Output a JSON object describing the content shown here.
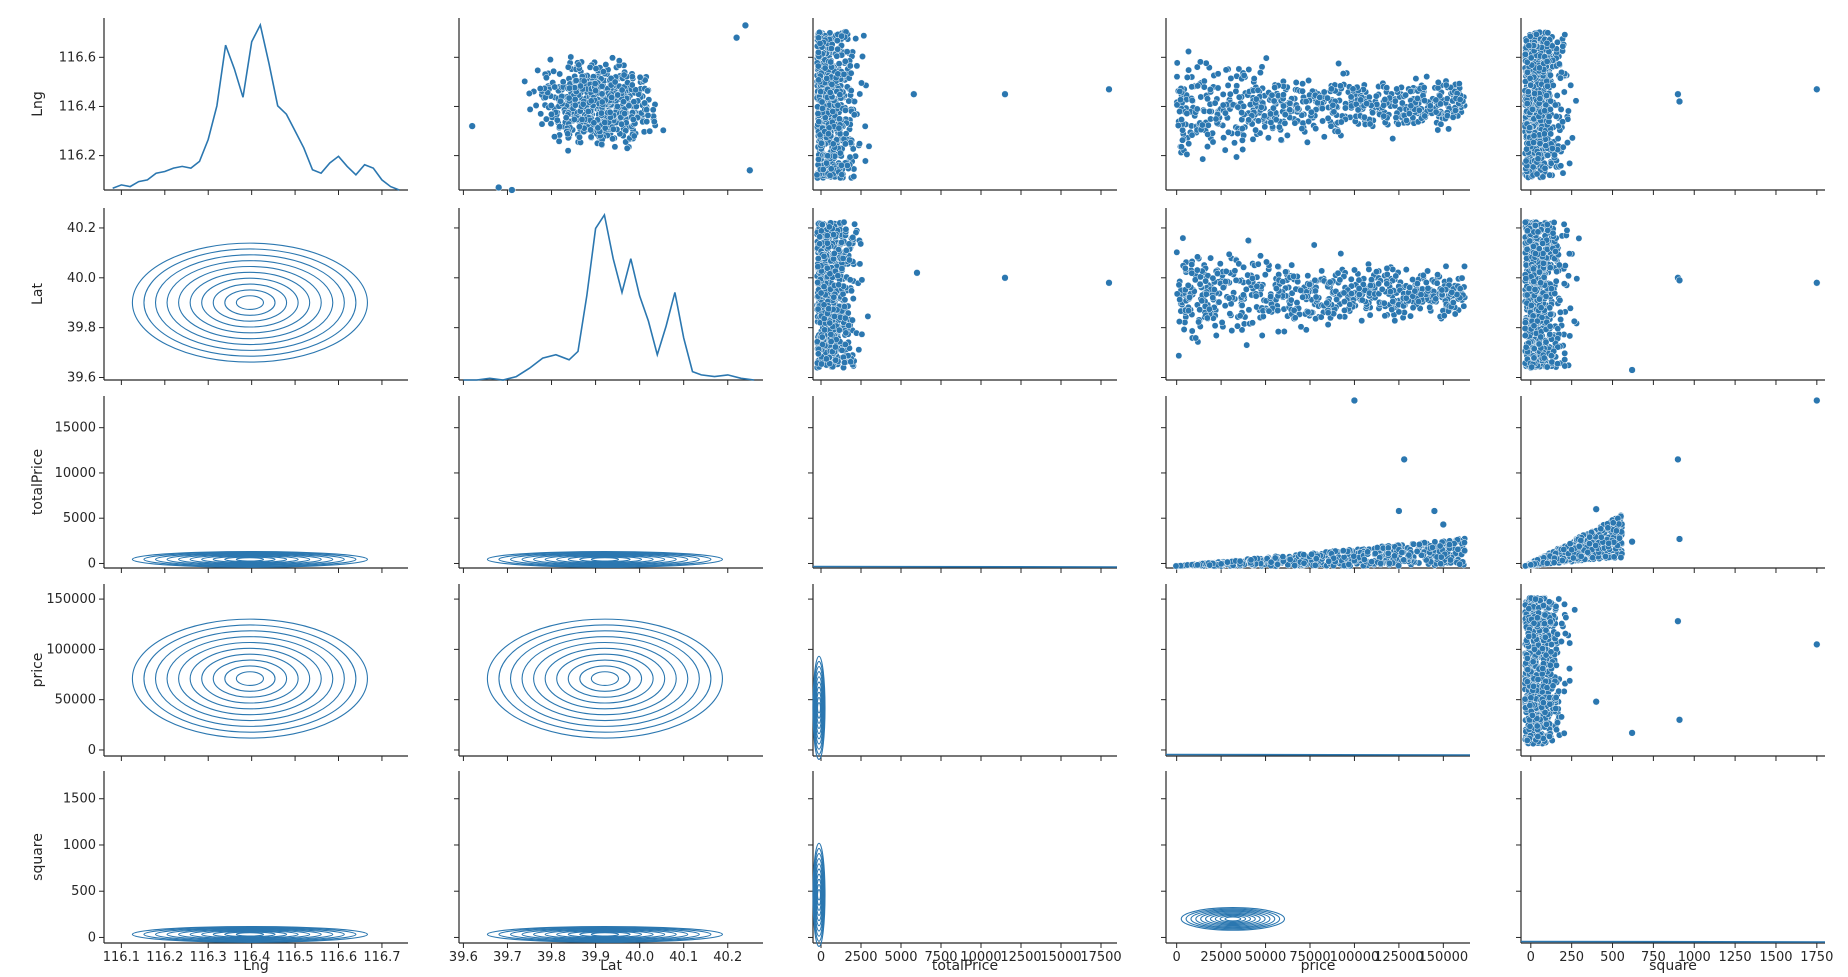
{
  "colors": {
    "series": "#2b77b0",
    "marker_edge": "#ffffff",
    "axis": "#262626"
  },
  "chart_data": {
    "type": "scatter",
    "subtype": "pairplot",
    "variables": [
      "Lng",
      "Lat",
      "totalPrice",
      "price",
      "square"
    ],
    "diagonal": "kde",
    "lower": "kde-contour",
    "upper": "scatter",
    "axes": {
      "Lng": {
        "label": "Lng",
        "lim": [
          116.06,
          116.76
        ],
        "ticks": [
          116.1,
          116.2,
          116.3,
          116.4,
          116.5,
          116.6,
          116.7
        ],
        "ytick_labels": [
          "116.2",
          "116.4",
          "116.6"
        ],
        "ytick_values": [
          116.2,
          116.4,
          116.6
        ],
        "xtick_labels": [
          "116.1",
          "116.2",
          "116.3",
          "116.4",
          "116.5",
          "116.6",
          "116.7"
        ]
      },
      "Lat": {
        "label": "Lat",
        "lim": [
          39.59,
          40.28
        ],
        "xtick_values": [
          39.6,
          39.7,
          39.8,
          39.9,
          40.0,
          40.1,
          40.2
        ],
        "xtick_labels": [
          "39.6",
          "39.7",
          "39.8",
          "39.9",
          "40.0",
          "40.1",
          "40.2"
        ],
        "ytick_values": [
          39.6,
          39.8,
          40.0,
          40.2
        ],
        "ytick_labels": [
          "39.6",
          "39.8",
          "40.0",
          "40.2"
        ]
      },
      "totalPrice": {
        "label": "totalPrice",
        "lim": [
          -500,
          18500
        ],
        "xtick_values": [
          0,
          2500,
          5000,
          7500,
          10000,
          12500,
          15000,
          17500
        ],
        "xtick_labels": [
          "0",
          "2500",
          "5000",
          "7500",
          "10000",
          "12500",
          "15000",
          "17500"
        ],
        "ytick_values": [
          0,
          5000,
          10000,
          15000
        ],
        "ytick_labels": [
          "0",
          "5000",
          "10000",
          "15000"
        ]
      },
      "price": {
        "label": "price",
        "lim": [
          -6000,
          165000
        ],
        "xtick_values": [
          0,
          25000,
          50000,
          75000,
          100000,
          125000,
          150000
        ],
        "xtick_labels": [
          "0",
          "25000",
          "50000",
          "75000",
          "100000",
          "125000",
          "150000"
        ],
        "ytick_values": [
          0,
          50000,
          100000,
          150000
        ],
        "ytick_labels": [
          "0",
          "50000",
          "100000",
          "150000"
        ]
      },
      "square": {
        "label": "square",
        "lim": [
          -60,
          1800
        ],
        "xtick_values": [
          0,
          250,
          500,
          750,
          1000,
          1250,
          1500,
          1750
        ],
        "xtick_labels": [
          "0",
          "250",
          "500",
          "750",
          "1000",
          "1250",
          "1500",
          "1750"
        ],
        "ytick_values": [
          0,
          500,
          1000,
          1500
        ],
        "ytick_labels": [
          "0",
          "500",
          "1000",
          "1500"
        ]
      }
    },
    "diagonal_kde": {
      "Lng": {
        "x": [
          116.08,
          116.1,
          116.12,
          116.14,
          116.16,
          116.18,
          116.2,
          116.22,
          116.24,
          116.26,
          116.28,
          116.3,
          116.32,
          116.34,
          116.36,
          116.38,
          116.4,
          116.42,
          116.44,
          116.46,
          116.48,
          116.5,
          116.52,
          116.54,
          116.56,
          116.58,
          116.6,
          116.62,
          116.64,
          116.66,
          116.68,
          116.7,
          116.72,
          116.74
        ],
        "y": [
          0.01,
          0.03,
          0.02,
          0.05,
          0.06,
          0.1,
          0.11,
          0.13,
          0.14,
          0.13,
          0.17,
          0.3,
          0.5,
          0.86,
          0.72,
          0.55,
          0.88,
          0.98,
          0.75,
          0.5,
          0.45,
          0.35,
          0.25,
          0.12,
          0.1,
          0.16,
          0.2,
          0.14,
          0.09,
          0.15,
          0.13,
          0.06,
          0.02,
          0.0
        ]
      },
      "Lat": {
        "x": [
          39.6,
          39.63,
          39.66,
          39.69,
          39.72,
          39.75,
          39.78,
          39.81,
          39.84,
          39.86,
          39.88,
          39.9,
          39.92,
          39.94,
          39.96,
          39.98,
          40.0,
          40.02,
          40.04,
          40.06,
          40.08,
          40.1,
          40.12,
          40.14,
          40.17,
          40.2,
          40.23,
          40.26
        ],
        "y": [
          0.0,
          0.0,
          0.01,
          0.0,
          0.02,
          0.07,
          0.13,
          0.15,
          0.12,
          0.17,
          0.5,
          0.9,
          0.98,
          0.72,
          0.52,
          0.72,
          0.5,
          0.35,
          0.15,
          0.32,
          0.52,
          0.25,
          0.05,
          0.03,
          0.02,
          0.03,
          0.01,
          0.0
        ]
      },
      "totalPrice": {
        "x": [
          0,
          500,
          2000,
          5000,
          10000,
          18000
        ],
        "y": [
          0.02,
          0.015,
          0.008,
          0.004,
          0.0,
          0.0
        ]
      },
      "price": {
        "x": [
          0,
          50000,
          100000,
          150000,
          160000
        ],
        "y": [
          0.02,
          0.02,
          0.015,
          0.01,
          0.0
        ]
      },
      "square": {
        "x": [
          0,
          500,
          1000,
          1500,
          1800
        ],
        "y": [
          0.02,
          0.01,
          0.005,
          0.002,
          0.0
        ]
      }
    },
    "scatter_outliers": {
      "Lng_vs_Lat": [
        [
          39.62,
          116.32
        ],
        [
          39.68,
          116.07
        ],
        [
          39.71,
          116.06
        ],
        [
          40.24,
          116.73
        ],
        [
          40.22,
          116.68
        ],
        [
          40.25,
          116.14
        ]
      ],
      "Lng_vs_totalPrice": [
        [
          11500,
          116.45
        ],
        [
          18000,
          116.47
        ],
        [
          5800,
          116.45
        ]
      ],
      "Lng_vs_square": [
        [
          900,
          116.45
        ],
        [
          910,
          116.42
        ],
        [
          1750,
          116.47
        ]
      ],
      "Lat_vs_totalPrice": [
        [
          11500,
          40.0
        ],
        [
          18000,
          39.98
        ],
        [
          6000,
          40.02
        ]
      ],
      "Lat_vs_square": [
        [
          900,
          40.0
        ],
        [
          910,
          39.99
        ],
        [
          1750,
          39.98
        ],
        [
          620,
          39.63
        ]
      ],
      "totalPrice_vs_price": [
        [
          100000,
          18000
        ],
        [
          128000,
          11500
        ],
        [
          125000,
          5800
        ],
        [
          150000,
          4300
        ],
        [
          145000,
          5800
        ]
      ],
      "totalPrice_vs_square": [
        [
          1750,
          18000
        ],
        [
          900,
          11500
        ],
        [
          910,
          2700
        ],
        [
          620,
          2400
        ],
        [
          400,
          6000
        ]
      ],
      "price_vs_square": [
        [
          900,
          128000
        ],
        [
          910,
          30000
        ],
        [
          1750,
          105000
        ],
        [
          620,
          17000
        ],
        [
          400,
          48000
        ]
      ]
    }
  }
}
